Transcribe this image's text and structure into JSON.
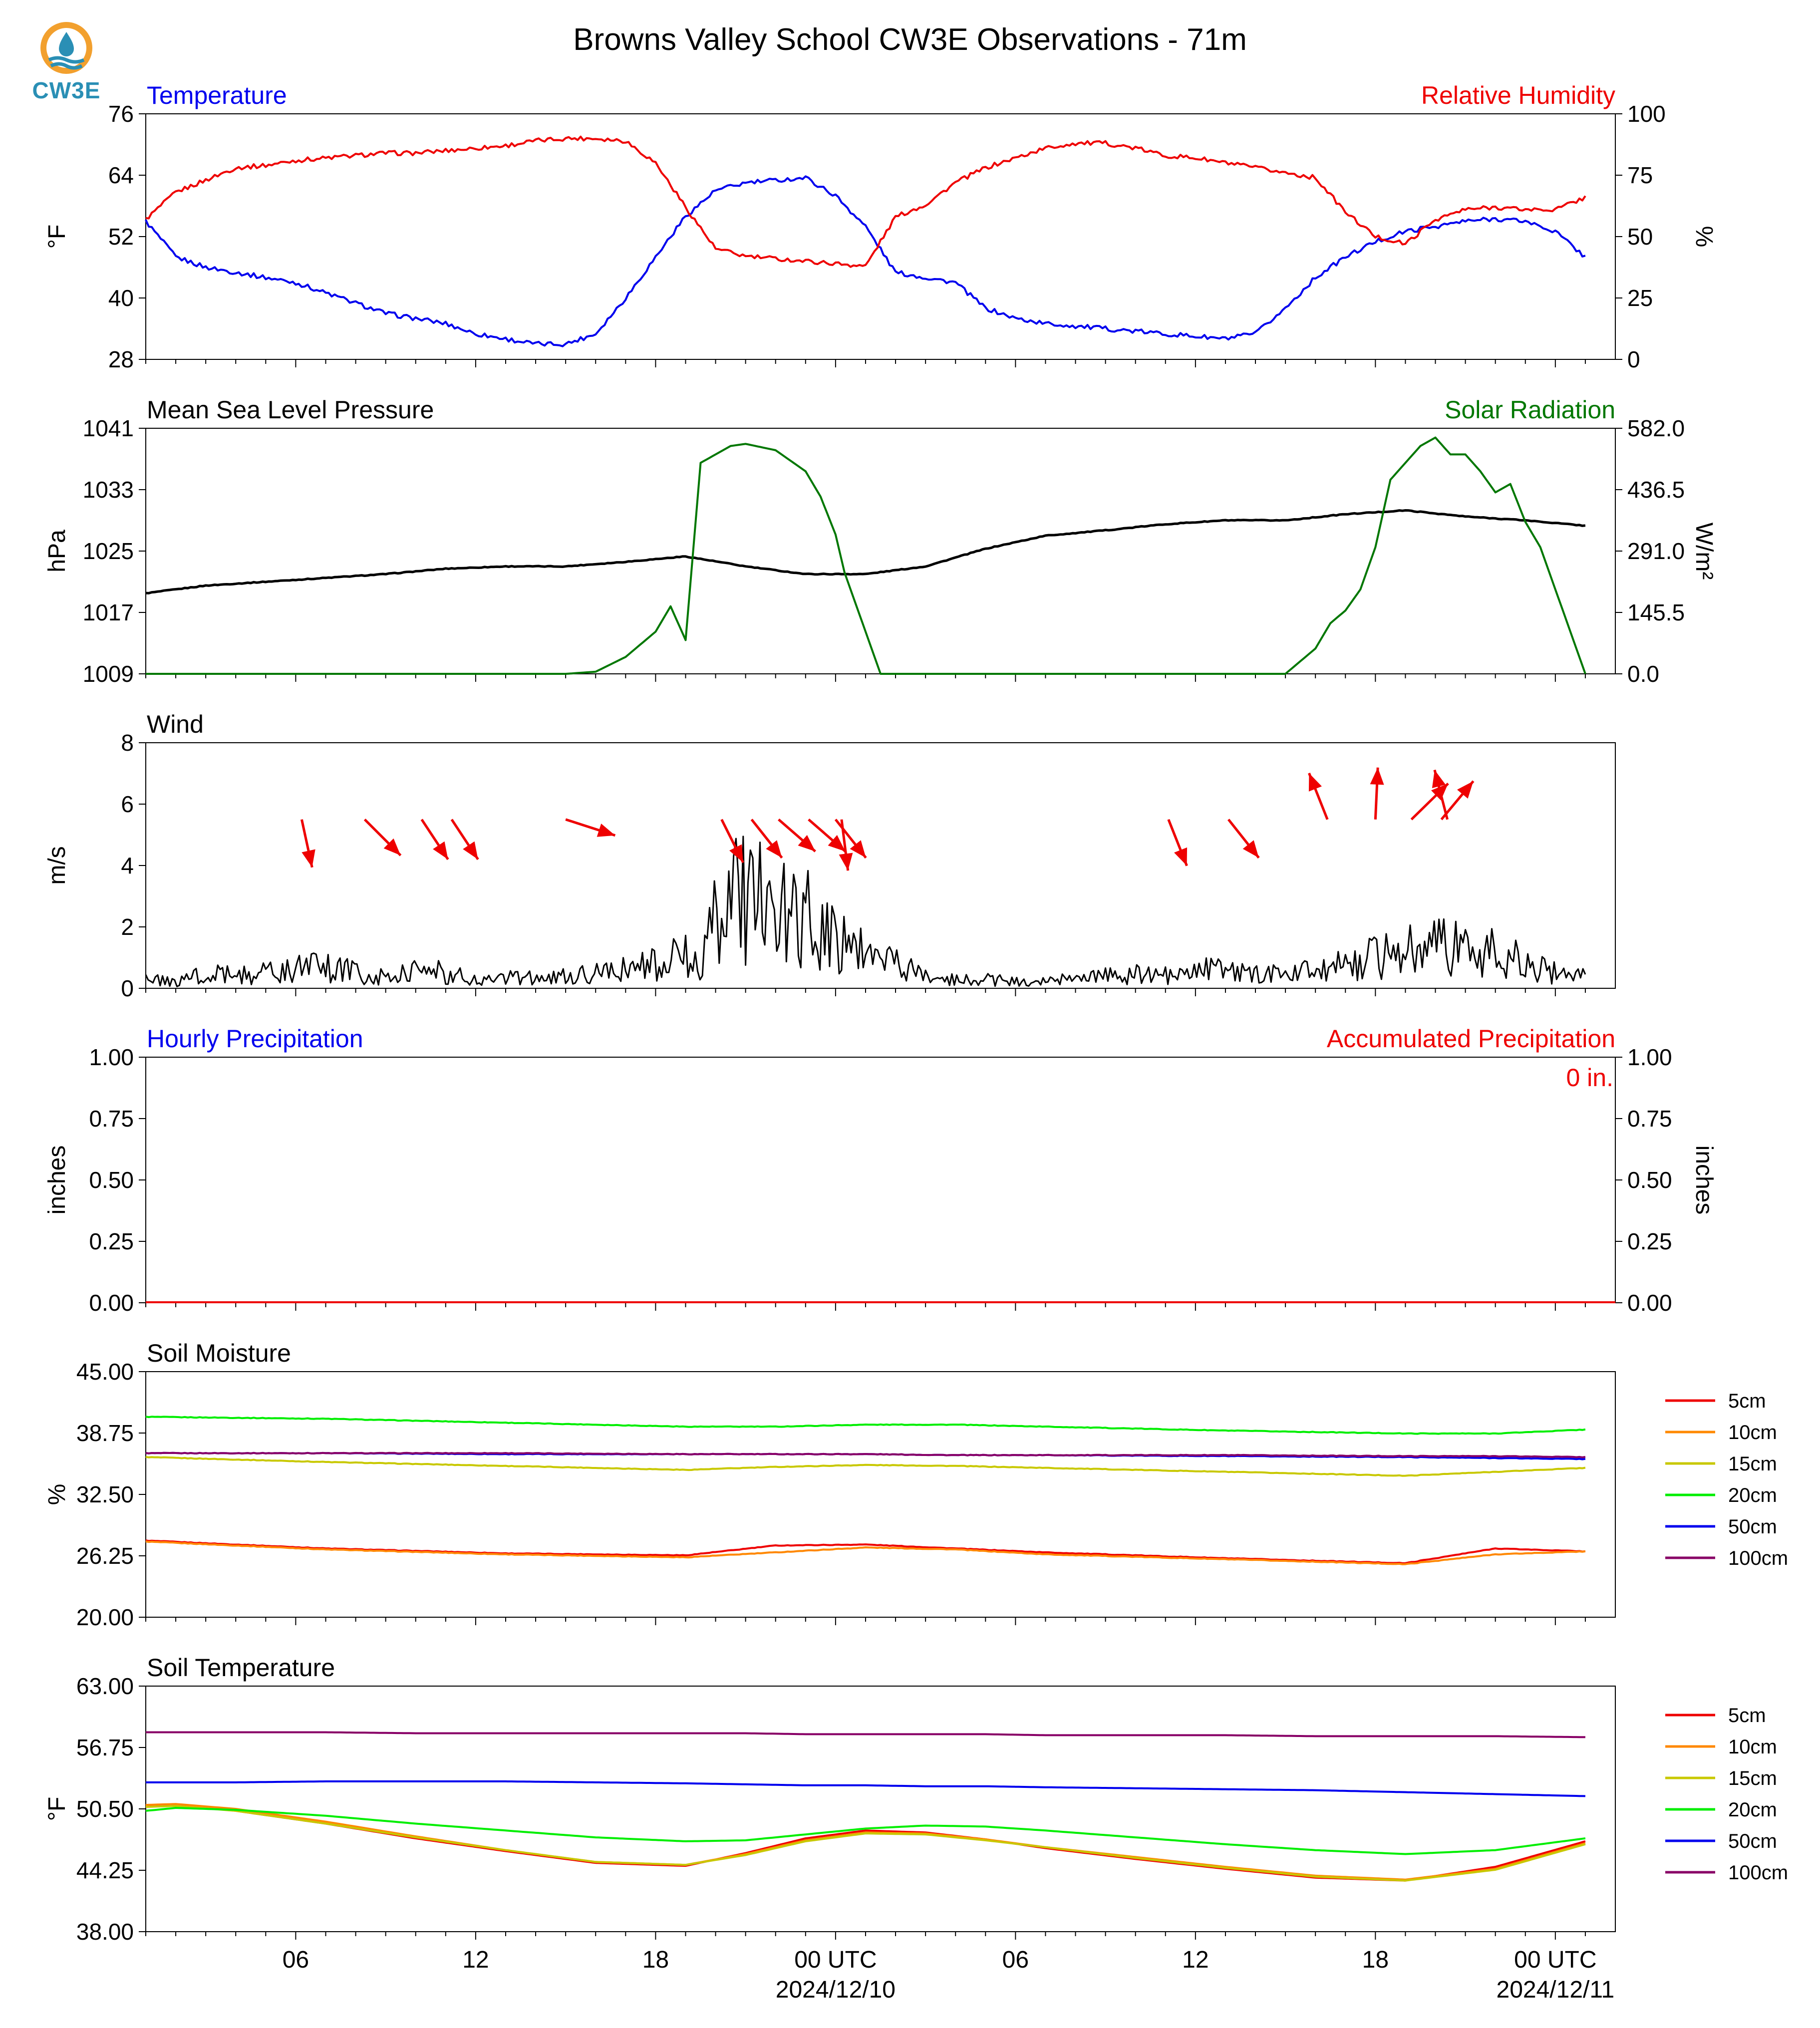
{
  "logo": {
    "text": "CW3E"
  },
  "figure_title": "Browns Valley School CW3E Observations - 71m",
  "time_axis": {
    "start": "2024-12-09 01:00 UTC",
    "end": "2024-12-11 01:00 UTC",
    "tick_labels": [
      "06",
      "12",
      "18",
      "00 UTC",
      "06",
      "12",
      "18",
      "00 UTC"
    ],
    "date_labels": [
      "2024/12/10",
      "2024/12/11"
    ]
  },
  "legend_labels": [
    "5cm",
    "10cm",
    "15cm",
    "20cm",
    "50cm",
    "100cm"
  ],
  "colors": {
    "temperature": "#0000ee",
    "humidity": "#ee0000",
    "pressure": "#000000",
    "solar": "#007700",
    "wind": "#000000",
    "wind_arrow": "#ee0000",
    "hourly_precip": "#0000ee",
    "accum_precip": "#ee0000",
    "5cm": "#ee0000",
    "10cm": "#ff8800",
    "15cm": "#c8c800",
    "20cm": "#00ee00",
    "50cm": "#0000ee",
    "100cm": "#880066"
  },
  "chart_data": [
    {
      "id": "temp_rh",
      "type": "line",
      "left_title": "Temperature",
      "right_title": "Relative Humidity",
      "left_ylabel": "°F",
      "right_ylabel": "%",
      "left_ylim": [
        28,
        76
      ],
      "right_ylim": [
        0,
        100
      ],
      "left_ticks": [
        "76",
        "64",
        "52",
        "40",
        "28"
      ],
      "right_ticks": [
        "100",
        "75",
        "50",
        "25",
        "0"
      ],
      "x_hours": [
        0,
        1,
        2,
        3,
        4,
        5,
        6,
        7,
        8,
        9,
        10,
        11,
        12,
        13,
        14,
        15,
        16,
        17,
        18,
        19,
        20,
        21,
        22,
        23,
        24,
        25,
        26,
        27,
        28,
        29,
        30,
        31,
        32,
        33,
        34,
        35,
        36,
        37,
        38,
        39,
        40,
        41,
        42,
        43,
        44,
        45,
        46,
        47,
        48
      ],
      "series": [
        {
          "key": "temperature",
          "axis": "left",
          "values": [
            55,
            48,
            46,
            45,
            44,
            43,
            41,
            39,
            37,
            36,
            35,
            33,
            32,
            31,
            31,
            33,
            40,
            48,
            56,
            61,
            62.5,
            63,
            63.5,
            60,
            54,
            45,
            44,
            43,
            38,
            36,
            35,
            34.5,
            34,
            33.5,
            33,
            32.5,
            32,
            33,
            38,
            44,
            48,
            51,
            53,
            54,
            55,
            55.5,
            55,
            53,
            48
          ]
        },
        {
          "key": "humidity",
          "axis": "right",
          "values": [
            57,
            68,
            73,
            78,
            79,
            81,
            82,
            83,
            84,
            84,
            85,
            86,
            87,
            89,
            90,
            90,
            89,
            80,
            62,
            45,
            42,
            41,
            40,
            39,
            38,
            58,
            63,
            72,
            78,
            82,
            86,
            88,
            88,
            86,
            83,
            82,
            80,
            78,
            76,
            74,
            60,
            50,
            47,
            57,
            61,
            62,
            61,
            61,
            66
          ]
        }
      ]
    },
    {
      "id": "pressure_solar",
      "type": "line",
      "left_title": "Mean Sea Level Pressure",
      "right_title": "Solar Radiation",
      "left_ylabel": "hPa",
      "right_ylabel": "W/m²",
      "left_ylim": [
        1009,
        1041
      ],
      "right_ylim": [
        0,
        582
      ],
      "left_ticks": [
        "1041",
        "1033",
        "1025",
        "1017",
        "1009"
      ],
      "right_ticks": [
        "582.0",
        "436.5",
        "291.0",
        "145.5",
        "0.0"
      ],
      "series": [
        {
          "key": "pressure",
          "axis": "left",
          "x_hours": [
            0,
            2,
            4,
            6,
            8,
            10,
            12,
            14,
            16,
            18,
            20,
            22,
            24,
            26,
            28,
            30,
            32,
            34,
            36,
            38,
            40,
            42,
            44,
            46,
            48
          ],
          "values": [
            1019.5,
            1020.5,
            1021,
            1021.5,
            1022,
            1022.7,
            1023,
            1023,
            1023.6,
            1024.3,
            1023,
            1022,
            1022,
            1023,
            1025.3,
            1027,
            1027.7,
            1028.5,
            1029,
            1029,
            1029.8,
            1030.3,
            1029.5,
            1029,
            1028.3
          ]
        },
        {
          "key": "solar",
          "axis": "right",
          "x_hours": [
            0,
            14,
            15,
            16,
            16.5,
            17,
            17.5,
            18,
            18.5,
            19,
            19.5,
            20,
            21,
            22,
            22.5,
            23,
            23.3,
            24,
            24.5,
            30,
            38,
            38.5,
            39,
            39.5,
            40,
            40.5,
            41,
            41.5,
            42,
            42.5,
            43,
            43.5,
            44,
            44.5,
            45,
            45.5,
            46,
            46.5,
            47,
            47.5,
            48
          ],
          "values": [
            0,
            0,
            5,
            40,
            70,
            100,
            160,
            80,
            500,
            520,
            540,
            545,
            530,
            480,
            420,
            330,
            240,
            100,
            0,
            0,
            0,
            30,
            60,
            120,
            150,
            200,
            300,
            460,
            500,
            540,
            560,
            520,
            520,
            480,
            430,
            450,
            360,
            300,
            200,
            100,
            0
          ]
        }
      ]
    },
    {
      "id": "wind",
      "type": "line",
      "left_title": "Wind",
      "left_ylabel": "m/s",
      "left_ylim": [
        0,
        8
      ],
      "left_ticks": [
        "8",
        "6",
        "4",
        "2",
        "0"
      ],
      "series": [
        {
          "key": "wind",
          "axis": "left",
          "x_hours": [
            0,
            1,
            2,
            3,
            4,
            5,
            6,
            7,
            8,
            9,
            10,
            11,
            12,
            13,
            14,
            15,
            16,
            17,
            17.5,
            18,
            18.5,
            19,
            19.5,
            20,
            20.5,
            21,
            21.5,
            22,
            22.5,
            23,
            23.5,
            24,
            24.5,
            25,
            26,
            27,
            28,
            29,
            30,
            31,
            32,
            33,
            34,
            35,
            36,
            37,
            38,
            39,
            40,
            41,
            42,
            43,
            44,
            45,
            46,
            47,
            48
          ],
          "values": [
            0.3,
            0.2,
            0.5,
            0.4,
            0.5,
            0.6,
            0.7,
            0.5,
            0.4,
            0.6,
            0.5,
            0.3,
            0.4,
            0.3,
            0.4,
            0.5,
            0.6,
            0.8,
            0.9,
            1.2,
            0.8,
            2.2,
            3.0,
            2.8,
            3.2,
            3.0,
            2.6,
            2.4,
            1.8,
            1.6,
            1.4,
            1.0,
            1.3,
            0.8,
            0.4,
            0.3,
            0.3,
            0.2,
            0.3,
            0.3,
            0.4,
            0.5,
            0.4,
            0.5,
            0.7,
            0.5,
            0.4,
            0.6,
            0.8,
            1.0,
            1.2,
            1.4,
            1.3,
            1.1,
            0.8,
            0.5,
            0.4
          ]
        }
      ],
      "arrows": [
        {
          "hour": 5.2,
          "u": 1.3,
          "v": -6
        },
        {
          "hour": 7.3,
          "u": 4.5,
          "v": -4.5
        },
        {
          "hour": 9.2,
          "u": 3.3,
          "v": -5
        },
        {
          "hour": 10.2,
          "u": 3.3,
          "v": -5
        },
        {
          "hour": 14.0,
          "u": 6.2,
          "v": -2
        },
        {
          "hour": 19.2,
          "u": 2.7,
          "v": -5.4
        },
        {
          "hour": 20.2,
          "u": 3.8,
          "v": -4.8
        },
        {
          "hour": 21.1,
          "u": 4.6,
          "v": -4
        },
        {
          "hour": 22.1,
          "u": 4.6,
          "v": -4
        },
        {
          "hour": 23.0,
          "u": 3.8,
          "v": -4.8
        },
        {
          "hour": 23.2,
          "u": 0.8,
          "v": -6.4
        },
        {
          "hour": 34.1,
          "u": 2.3,
          "v": -5.8
        },
        {
          "hour": 36.1,
          "u": 3.8,
          "v": -4.8
        },
        {
          "hour": 39.4,
          "u": -2.3,
          "v": 5.8
        },
        {
          "hour": 41.0,
          "u": 0.3,
          "v": 6.5
        },
        {
          "hour": 42.2,
          "u": 4.6,
          "v": 4.5
        },
        {
          "hour": 43.4,
          "u": -1.6,
          "v": 6.2
        },
        {
          "hour": 43.2,
          "u": 4.0,
          "v": 4.8
        }
      ]
    },
    {
      "id": "precip",
      "type": "bar",
      "left_title": "Hourly Precipitation",
      "right_title": "Accumulated Precipitation",
      "left_ylabel": "inches",
      "right_ylabel": "inches",
      "left_ylim": [
        0,
        1
      ],
      "right_ylim": [
        0,
        1
      ],
      "left_ticks": [
        "1.00",
        "0.75",
        "0.50",
        "0.25",
        "0.00"
      ],
      "right_ticks": [
        "1.00",
        "0.75",
        "0.50",
        "0.25",
        "0.00"
      ],
      "annotation": "0 in.",
      "hourly_values": [],
      "accumulated": 0
    },
    {
      "id": "soil_moisture",
      "type": "line",
      "left_title": "Soil Moisture",
      "left_ylabel": "%",
      "left_ylim": [
        20,
        45
      ],
      "left_ticks": [
        "45.00",
        "38.75",
        "32.50",
        "26.25",
        "20.00"
      ],
      "x_hours": [
        0,
        6,
        12,
        18,
        21,
        24,
        27,
        30,
        36,
        42,
        45,
        48
      ],
      "series": [
        {
          "name": "5cm",
          "key": "5cm",
          "values": [
            27.8,
            27.0,
            26.5,
            26.3,
            27.3,
            27.4,
            27.0,
            26.6,
            26.0,
            25.5,
            27.0,
            26.7
          ]
        },
        {
          "name": "10cm",
          "key": "10cm",
          "values": [
            27.7,
            26.9,
            26.4,
            26.1,
            26.6,
            27.1,
            26.9,
            26.4,
            25.9,
            25.4,
            26.4,
            26.7
          ]
        },
        {
          "name": "15cm",
          "key": "15cm",
          "values": [
            36.3,
            35.8,
            35.4,
            35.0,
            35.3,
            35.5,
            35.4,
            35.2,
            34.8,
            34.4,
            34.8,
            35.2
          ]
        },
        {
          "name": "20cm",
          "key": "20cm",
          "values": [
            40.4,
            40.2,
            39.8,
            39.4,
            39.4,
            39.6,
            39.6,
            39.4,
            39.0,
            38.7,
            38.7,
            39.1
          ]
        },
        {
          "name": "50cm",
          "key": "50cm",
          "values": [
            36.7,
            36.7,
            36.6,
            36.6,
            36.6,
            36.6,
            36.5,
            36.5,
            36.4,
            36.3,
            36.2,
            36.1
          ]
        },
        {
          "name": "100cm",
          "key": "100cm",
          "values": [
            36.7,
            36.7,
            36.7,
            36.6,
            36.6,
            36.6,
            36.5,
            36.5,
            36.5,
            36.4,
            36.4,
            36.3
          ]
        }
      ]
    },
    {
      "id": "soil_temperature",
      "type": "line",
      "left_title": "Soil Temperature",
      "left_ylabel": "°F",
      "left_ylim": [
        38,
        63
      ],
      "left_ticks": [
        "63.00",
        "56.75",
        "50.50",
        "44.25",
        "38.00"
      ],
      "x_hours": [
        0,
        1,
        3,
        6,
        9,
        12,
        15,
        18,
        20,
        22,
        24,
        26,
        28,
        30,
        33,
        36,
        39,
        42,
        45,
        48
      ],
      "series": [
        {
          "name": "5cm",
          "key": "5cm",
          "values": [
            50.8,
            50.9,
            50.3,
            49.0,
            47.5,
            46.2,
            45.0,
            44.7,
            46.0,
            47.5,
            48.3,
            48.1,
            47.4,
            46.5,
            45.4,
            44.4,
            43.5,
            43.2,
            44.6,
            47.2
          ]
        },
        {
          "name": "10cm",
          "key": "10cm",
          "values": [
            50.9,
            51.0,
            50.5,
            49.2,
            47.7,
            46.3,
            45.1,
            44.8,
            45.9,
            47.3,
            48.1,
            48.0,
            47.4,
            46.6,
            45.6,
            44.6,
            43.7,
            43.3,
            44.4,
            47.0
          ]
        },
        {
          "name": "15cm",
          "key": "15cm",
          "values": [
            50.7,
            50.8,
            50.3,
            49.0,
            47.6,
            46.3,
            45.1,
            44.8,
            45.8,
            47.2,
            48.0,
            47.9,
            47.3,
            46.6,
            45.5,
            44.5,
            43.6,
            43.2,
            44.3,
            46.9
          ]
        },
        {
          "name": "20cm",
          "key": "20cm",
          "values": [
            50.3,
            50.6,
            50.4,
            49.8,
            49.0,
            48.3,
            47.6,
            47.2,
            47.3,
            47.9,
            48.5,
            48.8,
            48.7,
            48.3,
            47.6,
            46.9,
            46.3,
            45.9,
            46.3,
            47.5
          ]
        },
        {
          "name": "50cm",
          "key": "50cm",
          "values": [
            53.2,
            53.2,
            53.2,
            53.3,
            53.3,
            53.3,
            53.2,
            53.1,
            53.0,
            52.9,
            52.9,
            52.8,
            52.8,
            52.7,
            52.6,
            52.5,
            52.4,
            52.2,
            52.0,
            51.8
          ]
        },
        {
          "name": "100cm",
          "key": "100cm",
          "values": [
            58.3,
            58.3,
            58.3,
            58.3,
            58.2,
            58.2,
            58.2,
            58.2,
            58.2,
            58.1,
            58.1,
            58.1,
            58.1,
            58.0,
            58.0,
            58.0,
            57.9,
            57.9,
            57.9,
            57.8
          ]
        }
      ]
    }
  ]
}
